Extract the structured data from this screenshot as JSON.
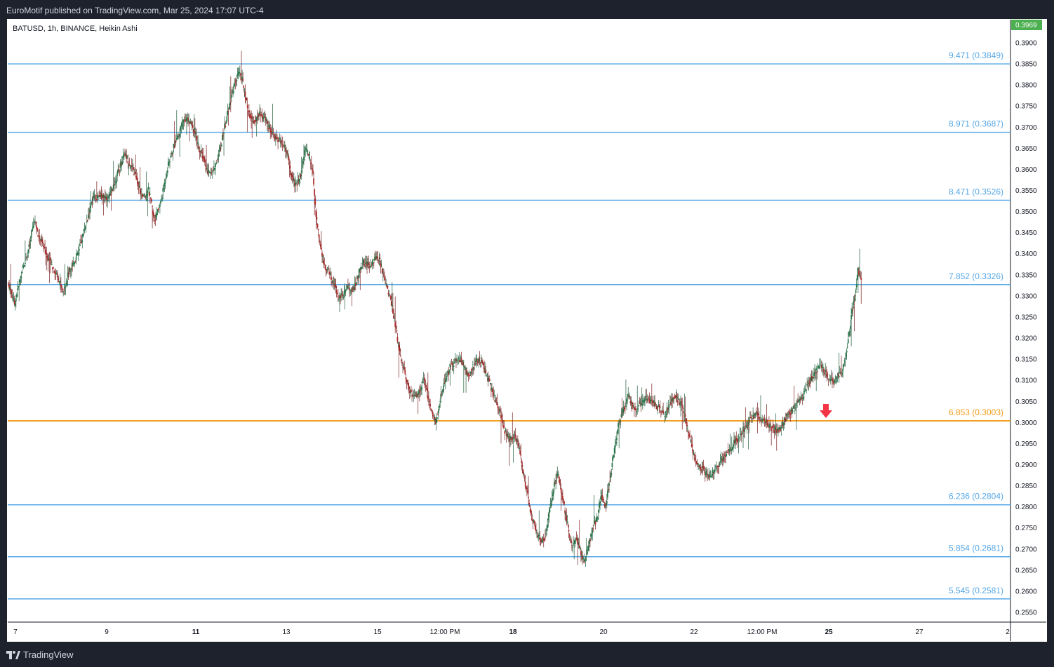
{
  "header": {
    "publisher": "EuroMotif published on TradingView.com, Mar 25, 2024 17:07 UTC-4"
  },
  "symbol": {
    "label": "BATUSD, 1h, BINANCE, Heikin Ashi"
  },
  "footer": {
    "brand": "TradingView"
  },
  "colors": {
    "up": "#26a69a",
    "up_body": "#2e7d4f",
    "down_body": "#b22f2f",
    "level": "#5aa9e6",
    "level_highlight": "#f0a020",
    "marker": "#f23645",
    "price_badge": "#4caf50"
  },
  "chart_data": {
    "type": "candlestick",
    "chart_style": "Heikin Ashi",
    "y_axis": {
      "min": 0.255,
      "max": 0.3969,
      "ticks": [
        "0.3900",
        "0.3850",
        "0.3800",
        "0.3750",
        "0.3700",
        "0.3650",
        "0.3600",
        "0.3550",
        "0.3500",
        "0.3450",
        "0.3400",
        "0.3350",
        "0.3300",
        "0.3250",
        "0.3200",
        "0.3150",
        "0.3100",
        "0.3050",
        "0.3000",
        "0.2950",
        "0.2900",
        "0.2850",
        "0.2800",
        "0.2750",
        "0.2700",
        "0.2650",
        "0.2600",
        "0.2550"
      ]
    },
    "x_axis": {
      "ticks": [
        {
          "label": "7",
          "bold": false
        },
        {
          "label": "9",
          "bold": false
        },
        {
          "label": "11",
          "bold": true
        },
        {
          "label": "13",
          "bold": false
        },
        {
          "label": "15",
          "bold": false
        },
        {
          "label": "12:00 PM",
          "bold": false
        },
        {
          "label": "18",
          "bold": true
        },
        {
          "label": "20",
          "bold": false
        },
        {
          "label": "22",
          "bold": false
        },
        {
          "label": "12:00 PM",
          "bold": false
        },
        {
          "label": "25",
          "bold": true
        },
        {
          "label": "27",
          "bold": false
        },
        {
          "label": "2",
          "bold": false
        }
      ]
    },
    "current_price": "0.3969",
    "levels": [
      {
        "label": "9.471 (0.3849)",
        "price": 0.3849,
        "highlight": false
      },
      {
        "label": "8.971 (0.3687)",
        "price": 0.3687,
        "highlight": false
      },
      {
        "label": "8.471 (0.3526)",
        "price": 0.3526,
        "highlight": false
      },
      {
        "label": "7.852 (0.3326)",
        "price": 0.3326,
        "highlight": false
      },
      {
        "label": "6.853 (0.3003)",
        "price": 0.3003,
        "highlight": true
      },
      {
        "label": "6.236 (0.2804)",
        "price": 0.2804,
        "highlight": false
      },
      {
        "label": "5.854 (0.2681)",
        "price": 0.2681,
        "highlight": false
      },
      {
        "label": "5.545 (0.2581)",
        "price": 0.2581,
        "highlight": false
      }
    ],
    "price_path": [
      [
        0,
        0.333
      ],
      [
        8,
        0.328
      ],
      [
        18,
        0.336
      ],
      [
        28,
        0.342
      ],
      [
        34,
        0.348
      ],
      [
        40,
        0.344
      ],
      [
        50,
        0.34
      ],
      [
        60,
        0.336
      ],
      [
        66,
        0.334
      ],
      [
        72,
        0.331
      ],
      [
        80,
        0.336
      ],
      [
        92,
        0.34
      ],
      [
        100,
        0.346
      ],
      [
        112,
        0.353
      ],
      [
        122,
        0.354
      ],
      [
        132,
        0.353
      ],
      [
        142,
        0.358
      ],
      [
        152,
        0.364
      ],
      [
        160,
        0.361
      ],
      [
        168,
        0.358
      ],
      [
        176,
        0.353
      ],
      [
        184,
        0.355
      ],
      [
        192,
        0.348
      ],
      [
        200,
        0.352
      ],
      [
        210,
        0.361
      ],
      [
        220,
        0.367
      ],
      [
        230,
        0.371
      ],
      [
        236,
        0.372
      ],
      [
        244,
        0.369
      ],
      [
        252,
        0.364
      ],
      [
        258,
        0.362
      ],
      [
        262,
        0.359
      ],
      [
        270,
        0.36
      ],
      [
        276,
        0.363
      ],
      [
        284,
        0.37
      ],
      [
        292,
        0.376
      ],
      [
        298,
        0.381
      ],
      [
        304,
        0.383
      ],
      [
        310,
        0.379
      ],
      [
        316,
        0.373
      ],
      [
        322,
        0.371
      ],
      [
        330,
        0.373
      ],
      [
        336,
        0.372
      ],
      [
        342,
        0.37
      ],
      [
        348,
        0.368
      ],
      [
        354,
        0.367
      ],
      [
        360,
        0.366
      ],
      [
        366,
        0.364
      ],
      [
        372,
        0.358
      ],
      [
        378,
        0.356
      ],
      [
        384,
        0.359
      ],
      [
        390,
        0.365
      ],
      [
        394,
        0.364
      ],
      [
        400,
        0.359
      ],
      [
        404,
        0.349
      ],
      [
        410,
        0.342
      ],
      [
        416,
        0.336
      ],
      [
        420,
        0.336
      ],
      [
        426,
        0.333
      ],
      [
        432,
        0.33
      ],
      [
        440,
        0.33
      ],
      [
        446,
        0.332
      ],
      [
        452,
        0.331
      ],
      [
        458,
        0.334
      ],
      [
        466,
        0.338
      ],
      [
        474,
        0.337
      ],
      [
        482,
        0.339
      ],
      [
        488,
        0.338
      ],
      [
        492,
        0.335
      ],
      [
        496,
        0.333
      ],
      [
        502,
        0.329
      ],
      [
        508,
        0.323
      ],
      [
        514,
        0.316
      ],
      [
        520,
        0.312
      ],
      [
        526,
        0.308
      ],
      [
        532,
        0.306
      ],
      [
        540,
        0.307
      ],
      [
        546,
        0.31
      ],
      [
        552,
        0.305
      ],
      [
        558,
        0.301
      ],
      [
        562,
        0.3
      ],
      [
        568,
        0.306
      ],
      [
        574,
        0.31
      ],
      [
        580,
        0.313
      ],
      [
        586,
        0.314
      ],
      [
        592,
        0.315
      ],
      [
        598,
        0.314
      ],
      [
        604,
        0.311
      ],
      [
        610,
        0.313
      ],
      [
        616,
        0.315
      ],
      [
        622,
        0.314
      ],
      [
        628,
        0.311
      ],
      [
        634,
        0.308
      ],
      [
        640,
        0.305
      ],
      [
        646,
        0.302
      ],
      [
        652,
        0.298
      ],
      [
        658,
        0.296
      ],
      [
        664,
        0.297
      ],
      [
        670,
        0.295
      ],
      [
        676,
        0.288
      ],
      [
        682,
        0.283
      ],
      [
        688,
        0.277
      ],
      [
        694,
        0.274
      ],
      [
        700,
        0.271
      ],
      [
        706,
        0.274
      ],
      [
        712,
        0.281
      ],
      [
        718,
        0.286
      ],
      [
        722,
        0.288
      ],
      [
        728,
        0.282
      ],
      [
        734,
        0.276
      ],
      [
        740,
        0.27
      ],
      [
        746,
        0.272
      ],
      [
        752,
        0.269
      ],
      [
        756,
        0.267
      ],
      [
        762,
        0.271
      ],
      [
        768,
        0.275
      ],
      [
        774,
        0.278
      ],
      [
        778,
        0.283
      ],
      [
        784,
        0.28
      ],
      [
        790,
        0.286
      ],
      [
        796,
        0.294
      ],
      [
        802,
        0.3
      ],
      [
        808,
        0.303
      ],
      [
        814,
        0.306
      ],
      [
        820,
        0.304
      ],
      [
        826,
        0.303
      ],
      [
        832,
        0.305
      ],
      [
        838,
        0.306
      ],
      [
        844,
        0.305
      ],
      [
        850,
        0.304
      ],
      [
        856,
        0.303
      ],
      [
        862,
        0.302
      ],
      [
        868,
        0.304
      ],
      [
        874,
        0.306
      ],
      [
        880,
        0.305
      ],
      [
        886,
        0.303
      ],
      [
        892,
        0.299
      ],
      [
        898,
        0.294
      ],
      [
        904,
        0.29
      ],
      [
        910,
        0.289
      ],
      [
        916,
        0.288
      ],
      [
        922,
        0.287
      ],
      [
        928,
        0.289
      ],
      [
        934,
        0.29
      ],
      [
        940,
        0.292
      ],
      [
        946,
        0.293
      ],
      [
        952,
        0.295
      ],
      [
        958,
        0.296
      ],
      [
        964,
        0.298
      ],
      [
        970,
        0.299
      ],
      [
        976,
        0.301
      ],
      [
        982,
        0.302
      ],
      [
        988,
        0.301
      ],
      [
        994,
        0.3
      ],
      [
        1000,
        0.299
      ],
      [
        1006,
        0.298
      ],
      [
        1012,
        0.298
      ],
      [
        1018,
        0.3
      ],
      [
        1024,
        0.302
      ],
      [
        1030,
        0.303
      ],
      [
        1036,
        0.304
      ],
      [
        1042,
        0.306
      ],
      [
        1048,
        0.308
      ],
      [
        1054,
        0.31
      ],
      [
        1060,
        0.312
      ],
      [
        1066,
        0.313
      ],
      [
        1072,
        0.312
      ],
      [
        1078,
        0.31
      ],
      [
        1084,
        0.31
      ],
      [
        1090,
        0.311
      ],
      [
        1096,
        0.312
      ],
      [
        1100,
        0.316
      ],
      [
        1104,
        0.321
      ],
      [
        1108,
        0.326
      ],
      [
        1112,
        0.33
      ],
      [
        1116,
        0.336
      ],
      [
        1120,
        0.333
      ]
    ],
    "marker": {
      "type": "arrow-down",
      "x_index": 1050,
      "price": 0.304
    }
  }
}
